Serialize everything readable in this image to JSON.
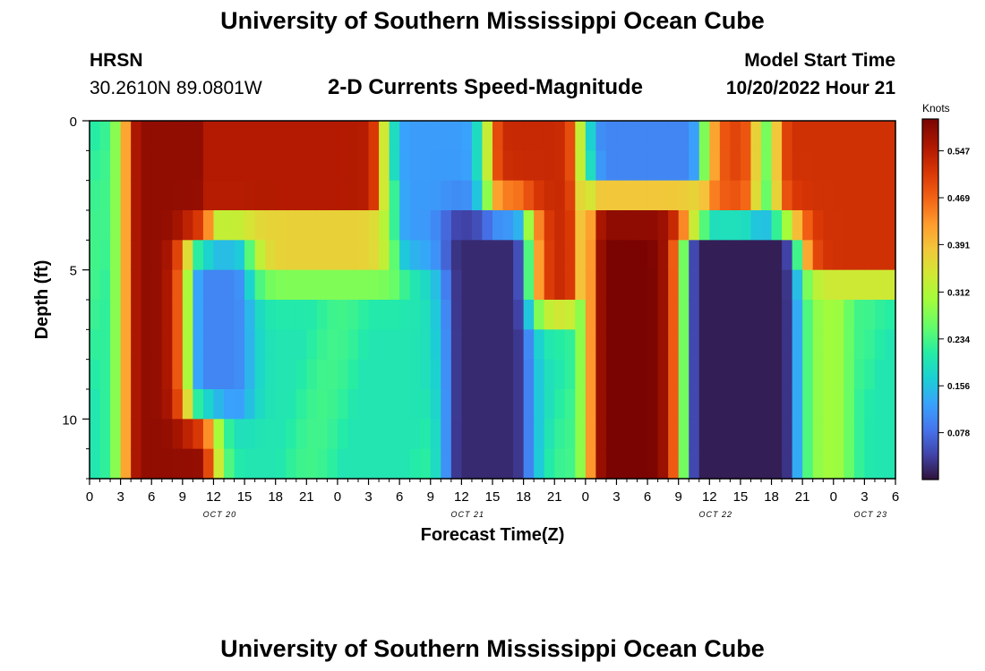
{
  "header": {
    "title": "University of Southern Mississippi Ocean Cube",
    "station": "HRSN",
    "coords": "30.2610N  89.0801W",
    "subtitle": "2-D Currents Speed-Magnitude",
    "model_label": "Model Start Time",
    "model_time": "10/20/2022 Hour 21"
  },
  "footer": {
    "title": "University of Southern Mississippi Ocean Cube"
  },
  "chart_data": {
    "type": "heatmap",
    "title": "2-D Currents Speed-Magnitude",
    "xlabel": "Forecast Time(Z)",
    "ylabel": "Depth (ft)",
    "x_ticks": [
      "0",
      "3",
      "6",
      "9",
      "12",
      "15",
      "18",
      "21",
      "0",
      "3",
      "6",
      "9",
      "12",
      "15",
      "18",
      "21",
      "0",
      "3",
      "6",
      "9",
      "12",
      "15",
      "18",
      "21",
      "0",
      "3",
      "6"
    ],
    "date_labels": [
      {
        "label": "OCT 20",
        "tick_index": 4.2
      },
      {
        "label": "OCT 21",
        "tick_index": 12.2
      },
      {
        "label": "OCT 22",
        "tick_index": 20.2
      },
      {
        "label": "OCT 23",
        "tick_index": 25.2
      }
    ],
    "x_range_hours": [
      0,
      78
    ],
    "x_step_hours": 1,
    "y_ticks": [
      "0",
      "5",
      "10"
    ],
    "y_range_ft": [
      0,
      12
    ],
    "y_step_ft": 1,
    "colorbar": {
      "label": "Knots",
      "ticks": [
        "0.547",
        "0.469",
        "0.391",
        "0.312",
        "0.234",
        "0.156",
        "0.078"
      ],
      "range": [
        0,
        0.6
      ]
    },
    "speed_fields": [
      {
        "name": "early-surface",
        "start": 5,
        "end": 10.5,
        "depth_top": 0,
        "depth_bottom": 12,
        "peak": 0.58
      },
      {
        "name": "day1-surface-band",
        "start": 5,
        "end": 27,
        "depth_top": 0,
        "depth_bottom": 2.5,
        "peak": 0.55
      },
      {
        "name": "day1-secondary-band",
        "start": 10,
        "end": 29,
        "depth_top": 2.5,
        "depth_bottom": 4.5,
        "peak": 0.37
      },
      {
        "name": "day2-surface",
        "start": 40,
        "end": 46,
        "depth_top": 0,
        "depth_bottom": 5.5,
        "peak": 0.53
      },
      {
        "name": "day2-deep-max",
        "start": 50,
        "end": 58,
        "depth_top": 2.5,
        "depth_bottom": 12,
        "peak": 0.6
      },
      {
        "name": "day2-mid-band",
        "start": 47,
        "end": 61,
        "depth_top": 2,
        "depth_bottom": 3.5,
        "peak": 0.33
      },
      {
        "name": "day3-early-surface",
        "start": 58,
        "end": 63,
        "depth_top": 0,
        "depth_bottom": 2.5,
        "peak": 0.5
      },
      {
        "name": "day3-surface",
        "start": 68,
        "end": 78,
        "depth_top": 0,
        "depth_bottom": 4.5,
        "peak": 0.52
      },
      {
        "name": "day3-lower",
        "start": 67.5,
        "end": 72,
        "depth_top": 4,
        "depth_bottom": 12,
        "peak": 0.3
      }
    ],
    "slack_fields": [
      {
        "name": "slack-day1-upper",
        "start": 31,
        "end": 36,
        "depth_top": 0,
        "depth_bottom": 4,
        "min": 0.12
      },
      {
        "name": "slack-day1-mid",
        "start": 11,
        "end": 14,
        "depth_top": 5,
        "depth_bottom": 9,
        "min": 0.1
      },
      {
        "name": "slack-day2",
        "start": 36,
        "end": 41,
        "depth_top": 4,
        "depth_bottom": 12,
        "min": 0.02
      },
      {
        "name": "slack-day2-surface",
        "start": 50,
        "end": 58,
        "depth_top": 0,
        "depth_bottom": 1.5,
        "min": 0.1
      },
      {
        "name": "slack-day3",
        "start": 59,
        "end": 67,
        "depth_top": 4.5,
        "depth_bottom": 12,
        "min": 0.01
      }
    ]
  }
}
